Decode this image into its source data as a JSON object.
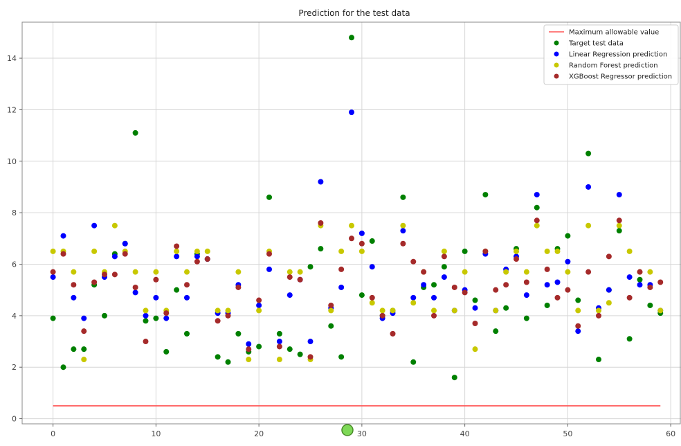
{
  "chart_data": {
    "type": "scatter",
    "title": "Prediction for the test data",
    "xlabel": "",
    "ylabel": "",
    "xlim": [
      -3,
      61
    ],
    "ylim": [
      -0.2,
      15.4
    ],
    "x_ticks": [
      0,
      10,
      20,
      30,
      40,
      50,
      60
    ],
    "y_ticks": [
      0,
      2,
      4,
      6,
      8,
      10,
      12,
      14
    ],
    "grid": true,
    "legend_position": "top-right",
    "reference_line": {
      "name": "Maximum allowable value",
      "value": 0.5,
      "x_range": [
        0,
        59
      ],
      "color": "#ff5555"
    },
    "series": [
      {
        "name": "Target test data",
        "color": "#008000",
        "values": [
          3.9,
          2.0,
          2.7,
          2.7,
          5.2,
          4.0,
          6.4,
          6.8,
          11.1,
          3.8,
          3.9,
          2.6,
          5.0,
          3.3,
          6.4,
          6.2,
          2.4,
          2.2,
          3.3,
          2.6,
          2.8,
          8.6,
          3.3,
          2.7,
          2.5,
          5.9,
          6.6,
          3.6,
          2.4,
          14.8,
          4.8,
          6.9,
          4.0,
          4.2,
          8.6,
          2.2,
          5.1,
          5.2,
          5.9,
          1.6,
          6.5,
          4.6,
          8.7,
          3.4,
          4.3,
          6.6,
          3.9,
          8.2,
          4.4,
          6.6,
          7.1,
          4.6,
          10.3,
          2.3,
          5.0,
          7.3,
          3.1,
          5.4,
          4.4,
          4.1
        ]
      },
      {
        "name": "Linear Regression prediction",
        "color": "#0000ff",
        "values": [
          5.5,
          7.1,
          4.7,
          3.9,
          7.5,
          5.5,
          6.3,
          6.8,
          4.9,
          4.0,
          4.7,
          3.9,
          6.3,
          4.7,
          6.3,
          6.2,
          4.1,
          4.1,
          5.2,
          2.9,
          4.4,
          5.8,
          3.0,
          4.8,
          5.4,
          3.0,
          9.2,
          4.3,
          5.1,
          11.9,
          7.2,
          5.9,
          3.9,
          4.1,
          7.3,
          4.7,
          5.2,
          4.7,
          5.5,
          4.2,
          5.0,
          4.3,
          6.4,
          4.2,
          5.8,
          6.3,
          4.8,
          8.7,
          5.2,
          5.3,
          6.1,
          3.4,
          9.0,
          4.3,
          5.0,
          8.7,
          5.5,
          5.2,
          5.2,
          4.2
        ]
      },
      {
        "name": "Random Forest prediction",
        "color": "#c8c800",
        "values": [
          6.5,
          6.5,
          5.7,
          2.3,
          6.5,
          5.7,
          7.5,
          6.5,
          5.7,
          4.2,
          5.7,
          4.2,
          6.5,
          5.7,
          6.5,
          6.5,
          4.2,
          4.2,
          5.7,
          2.3,
          4.2,
          6.5,
          2.3,
          5.7,
          5.7,
          2.3,
          7.5,
          4.2,
          6.5,
          7.5,
          6.5,
          4.5,
          4.2,
          4.2,
          7.5,
          4.5,
          5.7,
          4.2,
          6.5,
          4.2,
          5.7,
          2.7,
          6.5,
          4.2,
          5.7,
          6.5,
          5.7,
          7.5,
          6.5,
          6.5,
          5.7,
          4.2,
          7.5,
          4.2,
          4.5,
          7.5,
          6.5,
          5.7,
          5.7,
          4.2
        ]
      },
      {
        "name": "XGBoost Regressor prediction",
        "color": "#a52a2a",
        "values": [
          5.7,
          6.4,
          5.2,
          3.4,
          5.3,
          5.6,
          5.6,
          6.4,
          5.1,
          3.0,
          5.4,
          4.1,
          6.7,
          5.2,
          6.1,
          6.2,
          3.8,
          4.0,
          5.1,
          2.7,
          4.6,
          6.4,
          2.8,
          5.5,
          5.4,
          2.4,
          7.6,
          4.4,
          5.8,
          7.0,
          6.8,
          4.7,
          4.0,
          3.3,
          6.8,
          6.1,
          5.7,
          4.0,
          6.3,
          5.1,
          4.9,
          3.7,
          6.5,
          5.0,
          5.2,
          6.2,
          5.3,
          7.7,
          5.8,
          4.7,
          5.0,
          3.6,
          5.7,
          4.0,
          6.3,
          7.7,
          4.7,
          5.7,
          5.1,
          5.3
        ]
      }
    ]
  }
}
